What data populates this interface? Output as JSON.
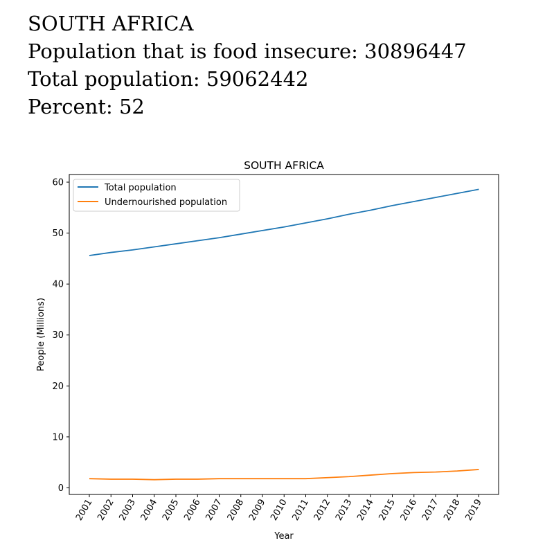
{
  "header": {
    "country": "SOUTH AFRICA",
    "food_insecure_line": "Population that is food insecure: 30896447",
    "total_population_line": "Total population: 59062442",
    "percent_line": "Percent: 52"
  },
  "chart_data": {
    "type": "line",
    "title": "SOUTH AFRICA",
    "xlabel": "Year",
    "ylabel": "People (Millions)",
    "x": [
      "2001",
      "2002",
      "2003",
      "2004",
      "2005",
      "2006",
      "2007",
      "2008",
      "2009",
      "2010",
      "2011",
      "2012",
      "2013",
      "2014",
      "2015",
      "2016",
      "2017",
      "2018",
      "2019"
    ],
    "ylim": [
      -1.3,
      61.5
    ],
    "yticks": [
      0,
      10,
      20,
      30,
      40,
      50,
      60
    ],
    "legend_position": "top-left",
    "grid": false,
    "series": [
      {
        "name": "Total population",
        "color": "#1f77b4",
        "values": [
          45.6,
          46.2,
          46.7,
          47.3,
          47.9,
          48.5,
          49.1,
          49.8,
          50.5,
          51.2,
          52.0,
          52.8,
          53.7,
          54.5,
          55.4,
          56.2,
          57.0,
          57.8,
          58.6
        ]
      },
      {
        "name": "Undernourished population",
        "color": "#ff7f0e",
        "values": [
          1.8,
          1.7,
          1.7,
          1.6,
          1.7,
          1.7,
          1.8,
          1.8,
          1.8,
          1.8,
          1.8,
          2.0,
          2.2,
          2.5,
          2.8,
          3.0,
          3.1,
          3.3,
          3.6
        ]
      }
    ]
  }
}
